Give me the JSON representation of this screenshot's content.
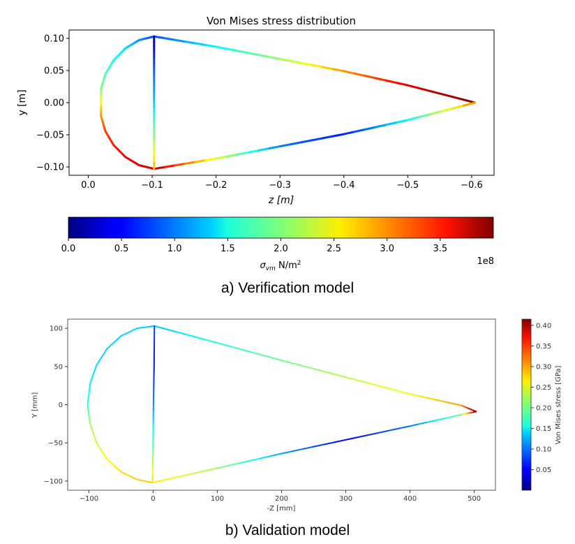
{
  "chart_data": [
    {
      "type": "line",
      "title": "Von Mises stress distribution",
      "xlabel": "z [m]",
      "ylabel": "y [m]",
      "x_axis_reversed": true,
      "xlim": [
        0.03,
        -0.635
      ],
      "ylim": [
        -0.113,
        0.113
      ],
      "xticks": [
        0.0,
        -0.1,
        -0.2,
        -0.3,
        -0.4,
        -0.5,
        -0.6
      ],
      "xtick_labels": [
        "0.0",
        "−0.1",
        "−0.2",
        "−0.3",
        "−0.4",
        "−0.5",
        "−0.6"
      ],
      "yticks": [
        0.1,
        0.05,
        0.0,
        -0.05,
        -0.1
      ],
      "ytick_labels": [
        "0.10",
        "0.05",
        "0.00",
        "−0.05",
        "−0.10"
      ],
      "grid": false,
      "colormap": "jet",
      "colorbar": {
        "orientation": "horizontal",
        "placement": "below",
        "range": [
          0,
          400000000.0
        ],
        "ticks": [
          0.0,
          0.5,
          1.0,
          1.5,
          2.0,
          2.5,
          3.0,
          3.5
        ],
        "tick_labels": [
          "0.0",
          "0.5",
          "1.0",
          "1.5",
          "2.0",
          "2.5",
          "3.0",
          "3.5"
        ],
        "label": "σvm N/m²",
        "label_math": "σ",
        "label_sub": "vm",
        "label_unit": " N/m",
        "label_sup": "2",
        "offset_text": "1e8"
      },
      "segments": [
        {
          "name": "arc",
          "points": [
            [
              -0.103,
              0.103
            ],
            [
              -0.0797,
              0.0974
            ],
            [
              -0.0581,
              0.0845
            ],
            [
              -0.0397,
              0.0661
            ],
            [
              -0.0268,
              0.0445
            ],
            [
              -0.02,
              0.0208
            ],
            [
              -0.02,
              0.0
            ],
            [
              -0.02,
              -0.0208
            ],
            [
              -0.0268,
              -0.0445
            ],
            [
              -0.0397,
              -0.0661
            ],
            [
              -0.0581,
              -0.0845
            ],
            [
              -0.0797,
              -0.0974
            ],
            [
              -0.103,
              -0.103
            ]
          ],
          "stress": [
            0.75,
            1.05,
            1.35,
            1.6,
            1.8,
            2.0,
            2.5,
            2.9,
            3.25,
            3.4,
            3.5,
            3.6,
            3.65
          ]
        },
        {
          "name": "upper-edge",
          "points": [
            [
              -0.103,
              0.103
            ],
            [
              -0.2,
              0.087
            ],
            [
              -0.3,
              0.068
            ],
            [
              -0.4,
              0.049
            ],
            [
              -0.5,
              0.027
            ],
            [
              -0.605,
              0.0
            ]
          ],
          "stress": [
            0.8,
            1.5,
            2.1,
            2.9,
            3.6,
            4.0
          ]
        },
        {
          "name": "lower-edge",
          "points": [
            [
              -0.103,
              -0.103
            ],
            [
              -0.2,
              -0.087
            ],
            [
              -0.3,
              -0.068
            ],
            [
              -0.4,
              -0.049
            ],
            [
              -0.5,
              -0.027
            ],
            [
              -0.605,
              0.0
            ]
          ],
          "stress": [
            3.8,
            2.4,
            1.0,
            0.6,
            1.5,
            3.0
          ]
        },
        {
          "name": "vertical-web",
          "points": [
            [
              -0.103,
              0.103
            ],
            [
              -0.103,
              0.05
            ],
            [
              -0.103,
              0.0
            ],
            [
              -0.103,
              -0.05
            ],
            [
              -0.103,
              -0.103
            ]
          ],
          "stress": [
            0.3,
            0.9,
            1.3,
            2.0,
            2.8
          ]
        }
      ]
    },
    {
      "type": "line",
      "xlabel": "-Z [mm]",
      "ylabel": "Y [mm]",
      "xlim": [
        -133,
        533
      ],
      "ylim": [
        -112,
        112
      ],
      "xticks": [
        -100,
        0,
        100,
        200,
        300,
        400,
        500
      ],
      "xtick_labels": [
        "−100",
        "0",
        "100",
        "200",
        "300",
        "400",
        "500"
      ],
      "yticks": [
        100,
        50,
        0,
        -50,
        -100
      ],
      "ytick_labels": [
        "100",
        "50",
        "0",
        "−50",
        "−100"
      ],
      "grid": false,
      "colormap": "jet",
      "colorbar": {
        "orientation": "vertical",
        "placement": "right",
        "range": [
          0.0,
          0.415
        ],
        "ticks": [
          0.05,
          0.1,
          0.15,
          0.2,
          0.25,
          0.3,
          0.35,
          0.4
        ],
        "tick_labels": [
          "0.05",
          "0.10",
          "0.15",
          "0.20",
          "0.25",
          "0.30",
          "0.35",
          "0.40"
        ],
        "label": "Von Mises stress [GPa]"
      },
      "segments": [
        {
          "name": "arc",
          "points": [
            [
              2,
              103
            ],
            [
              -25,
              100
            ],
            [
              -50,
              90
            ],
            [
              -72,
              73
            ],
            [
              -88,
              52
            ],
            [
              -98,
              28
            ],
            [
              -102,
              0
            ],
            [
              -98,
              -25
            ],
            [
              -88,
              -50
            ],
            [
              -72,
              -71
            ],
            [
              -50,
              -88
            ],
            [
              -25,
              -98
            ],
            [
              -1,
              -102
            ]
          ],
          "stress": [
            0.13,
            0.14,
            0.14,
            0.14,
            0.145,
            0.15,
            0.17,
            0.22,
            0.24,
            0.26,
            0.27,
            0.28,
            0.28
          ]
        },
        {
          "name": "upper-edge",
          "points": [
            [
              2,
              103
            ],
            [
              100,
              81
            ],
            [
              200,
              58
            ],
            [
              300,
              36
            ],
            [
              400,
              14
            ],
            [
              480,
              -1
            ],
            [
              503,
              -9
            ]
          ],
          "stress": [
            0.13,
            0.17,
            0.2,
            0.23,
            0.26,
            0.3,
            0.41
          ]
        },
        {
          "name": "lower-edge",
          "points": [
            [
              -1,
              -102
            ],
            [
              100,
              -83
            ],
            [
              200,
              -64
            ],
            [
              300,
              -46
            ],
            [
              400,
              -28
            ],
            [
              480,
              -13
            ],
            [
              503,
              -9
            ]
          ],
          "stress": [
            0.27,
            0.22,
            0.12,
            0.05,
            0.1,
            0.2,
            0.41
          ]
        },
        {
          "name": "vertical-web",
          "points": [
            [
              2,
              103
            ],
            [
              1.5,
              50
            ],
            [
              0.5,
              0
            ],
            [
              0,
              -50
            ],
            [
              -1,
              -102
            ]
          ],
          "stress": [
            0.08,
            0.06,
            0.11,
            0.18,
            0.28
          ]
        }
      ]
    }
  ],
  "captions": {
    "a": "a) Verification model",
    "b": "b) Validation model"
  }
}
